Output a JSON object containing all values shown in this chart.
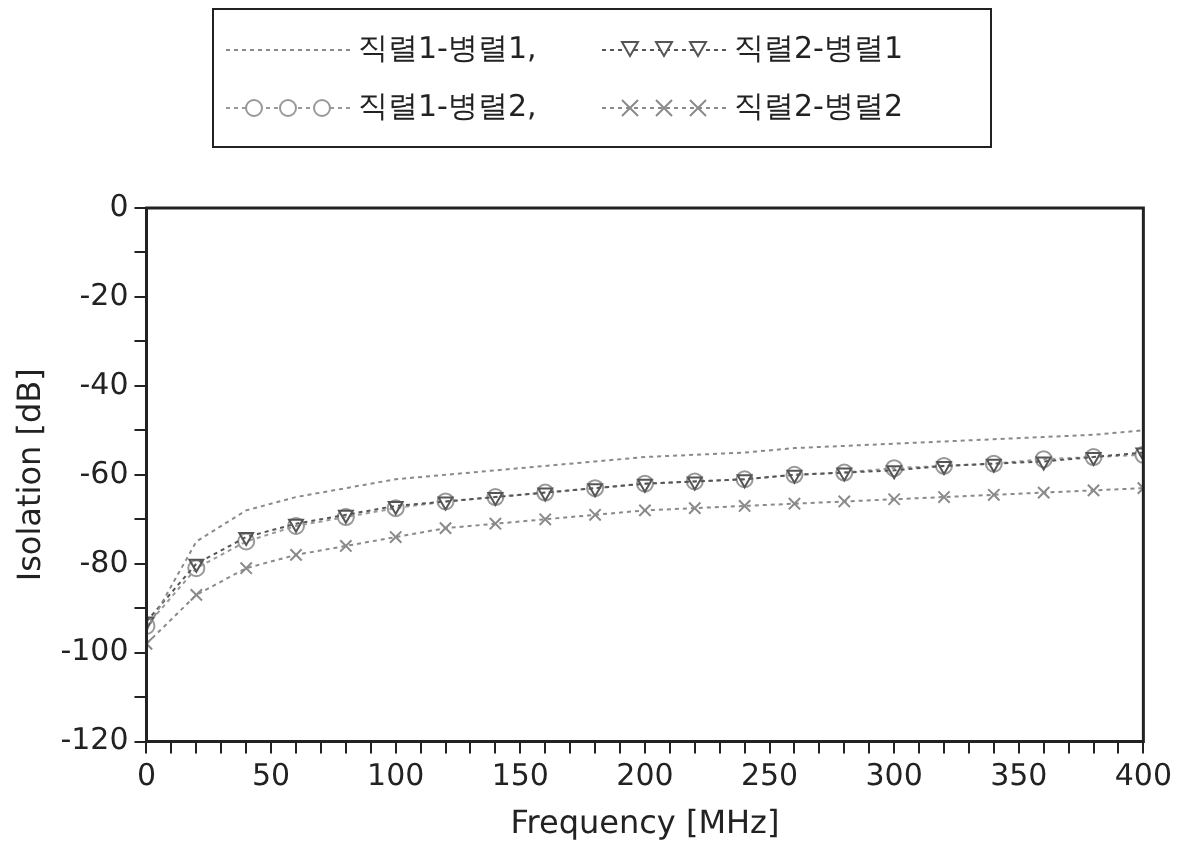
{
  "chart_data": {
    "type": "line",
    "xlabel": "Frequency [MHz]",
    "ylabel": "Isolation [dB]",
    "x": [
      0,
      20,
      40,
      60,
      80,
      100,
      120,
      140,
      160,
      180,
      200,
      220,
      240,
      260,
      280,
      300,
      320,
      340,
      360,
      380,
      400
    ],
    "series": [
      {
        "name": "직렬1-병렬1,",
        "color": "#8a8a8a",
        "marker": "none",
        "values": [
          -95,
          -75,
          -68,
          -65,
          -63,
          -61,
          -60,
          -59,
          -58,
          -57,
          -56,
          -55.5,
          -55,
          -54,
          -53.5,
          -53,
          -52.5,
          -52,
          -51.5,
          -51,
          -50
        ]
      },
      {
        "name": "직렬2-병렬1",
        "color": "#555555",
        "marker": "triangle",
        "values": [
          -93,
          -80,
          -74,
          -71,
          -69,
          -67,
          -66,
          -65,
          -64,
          -63,
          -62,
          -61.5,
          -61,
          -60,
          -59.5,
          -59,
          -58,
          -57.5,
          -57,
          -56,
          -55
        ]
      },
      {
        "name": "직렬1-병렬2,",
        "color": "#999999",
        "marker": "circle",
        "values": [
          -94,
          -81,
          -75,
          -71.5,
          -69.5,
          -67.5,
          -66,
          -65,
          -64,
          -63,
          -62,
          -61.5,
          -61,
          -60,
          -59.5,
          -58.5,
          -58,
          -57.5,
          -56.5,
          -56,
          -55.5
        ]
      },
      {
        "name": "직렬2-병렬2",
        "color": "#8a8a8a",
        "marker": "cross",
        "values": [
          -98,
          -87,
          -81,
          -78,
          -76,
          -74,
          -72,
          -71,
          -70,
          -69,
          -68,
          -67.5,
          -67,
          -66.5,
          -66,
          -65.5,
          -65,
          -64.5,
          -64,
          -63.5,
          -63
        ]
      }
    ],
    "xlim": [
      0,
      400
    ],
    "xticks": [
      0,
      {
        "value": 10,
        "label": null
      },
      {
        "value": 20,
        "label": null
      },
      {
        "value": 30,
        "label": null
      },
      {
        "value": 40,
        "label": null
      },
      50,
      {
        "value": 60,
        "label": null
      },
      {
        "value": 70,
        "label": null
      },
      {
        "value": 80,
        "label": null
      },
      {
        "value": 90,
        "label": null
      },
      100,
      {
        "value": 110,
        "label": null
      },
      {
        "value": 120,
        "label": null
      },
      {
        "value": 130,
        "label": null
      },
      {
        "value": 140,
        "label": null
      },
      150,
      {
        "value": 160,
        "label": null
      },
      {
        "value": 170,
        "label": null
      },
      {
        "value": 180,
        "label": null
      },
      {
        "value": 190,
        "label": null
      },
      200,
      {
        "value": 210,
        "label": null
      },
      {
        "value": 220,
        "label": null
      },
      {
        "value": 230,
        "label": null
      },
      {
        "value": 240,
        "label": null
      },
      250,
      {
        "value": 260,
        "label": null
      },
      {
        "value": 270,
        "label": null
      },
      {
        "value": 280,
        "label": null
      },
      {
        "value": 290,
        "label": null
      },
      300,
      {
        "value": 310,
        "label": null
      },
      {
        "value": 320,
        "label": null
      },
      {
        "value": 330,
        "label": null
      },
      {
        "value": 340,
        "label": null
      },
      350,
      {
        "value": 360,
        "label": null
      },
      {
        "value": 370,
        "label": null
      },
      {
        "value": 380,
        "label": null
      },
      {
        "value": 390,
        "label": null
      },
      400
    ],
    "ylim": [
      -120,
      0
    ],
    "yticks": [
      -120,
      {
        "value": -110,
        "label": null
      },
      -100,
      {
        "value": -90,
        "label": null
      },
      -80,
      {
        "value": -70,
        "label": null
      },
      -60,
      {
        "value": -50,
        "label": null
      },
      -40,
      {
        "value": -30,
        "label": null
      },
      -20,
      {
        "value": -10,
        "label": null
      },
      0
    ],
    "grid": false,
    "legend": "top",
    "line_style": "dotted"
  }
}
